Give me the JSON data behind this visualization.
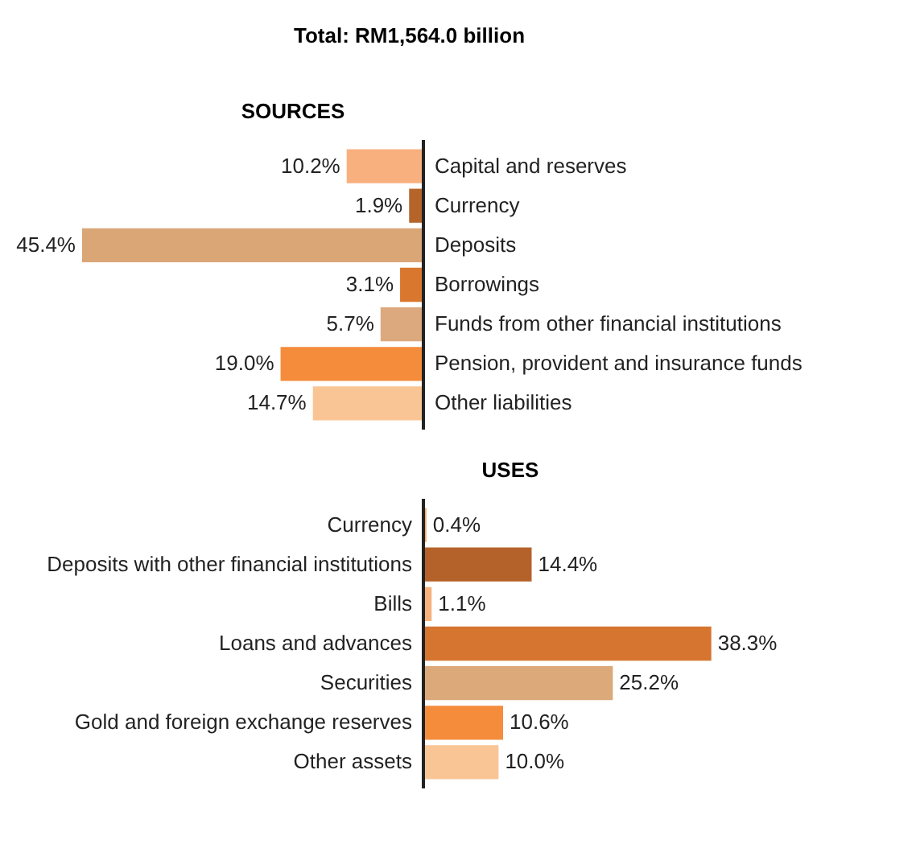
{
  "chart_data": [
    {
      "type": "bar",
      "orientation": "horizontal",
      "title": "Total: RM1,564.0 billion",
      "subtitle": "SOURCES",
      "categories": [
        "Capital and reserves",
        "Currency",
        "Deposits",
        "Borrowings",
        "Funds from other financial institutions",
        "Pension, provident and insurance funds",
        "Other liabilities"
      ],
      "values": [
        10.2,
        1.9,
        45.4,
        3.1,
        5.7,
        19.0,
        14.7
      ],
      "value_labels": [
        "10.2%",
        "1.9%",
        "45.4%",
        "3.1%",
        "5.7%",
        "19.0%",
        "14.7%"
      ],
      "colors": [
        "#f8b07f",
        "#b5652a",
        "#dba676",
        "#d9772f",
        "#dca97e",
        "#f58c3c",
        "#fac595"
      ]
    },
    {
      "type": "bar",
      "orientation": "horizontal",
      "title": "USES",
      "categories": [
        "Currency",
        "Deposits with other financial institutions",
        "Bills",
        "Loans and advances",
        "Securities",
        "Gold and foreign exchange reserves",
        "Other assets"
      ],
      "values": [
        0.4,
        14.4,
        1.1,
        38.3,
        25.2,
        10.6,
        10.0
      ],
      "value_labels": [
        "0.4%",
        "14.4%",
        "1.1%",
        "38.3%",
        "25.2%",
        "10.6%",
        "10.0%"
      ],
      "colors": [
        "#f7a567",
        "#b4622a",
        "#f8b27d",
        "#d5752f",
        "#dca97a",
        "#f58c3c",
        "#fac595"
      ]
    }
  ]
}
